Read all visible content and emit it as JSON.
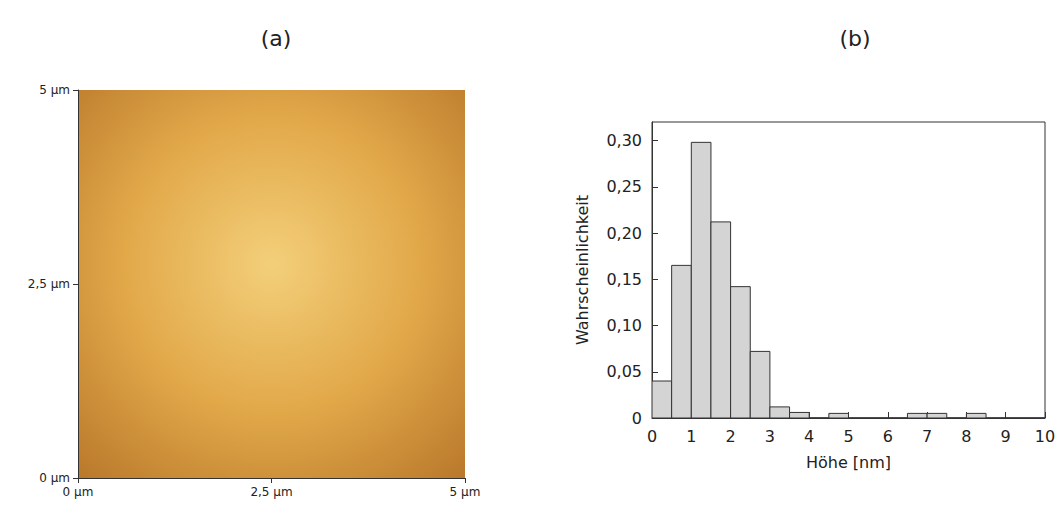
{
  "chart_data": [
    {
      "type": "image",
      "title": "(a)",
      "xlim": [
        0,
        5
      ],
      "xticks": [
        {
          "value": 0,
          "label": "0 µm"
        },
        {
          "value": 2.5,
          "label": "2,5 µm"
        },
        {
          "value": 5,
          "label": "5 µm"
        }
      ],
      "ylim": [
        0,
        5
      ],
      "yticks": [
        {
          "value": 0,
          "label": "0 µm"
        },
        {
          "value": 2.5,
          "label": "2,5 µm"
        },
        {
          "value": 5,
          "label": "5 µm"
        }
      ],
      "grid": false
    },
    {
      "type": "histogram",
      "title": "(b)",
      "x_label": "Höhe [nm]",
      "y_label": "Wahrscheinlichkeit",
      "bins": [
        0,
        0.5,
        1,
        1.5,
        2,
        2.5,
        3,
        3.5,
        4,
        4.5,
        5,
        5.5,
        6,
        6.5,
        7,
        7.5,
        8,
        8.5,
        9,
        9.5,
        10
      ],
      "counts": [
        0.04,
        0.165,
        0.298,
        0.212,
        0.142,
        0.072,
        0.012,
        0.006,
        0,
        0.005,
        0,
        0,
        0,
        0.005,
        0.005,
        0,
        0.005,
        0,
        0,
        0
      ],
      "color": "#d4d4d4",
      "xlim": [
        0,
        10
      ],
      "xticks": [
        0,
        1,
        2,
        3,
        4,
        5,
        6,
        7,
        8,
        9,
        10
      ],
      "ylim": [
        0,
        0.32
      ],
      "yticks": [
        0,
        {
          "value": 0.05,
          "label": "0,05"
        },
        {
          "value": 0.1,
          "label": "0,10"
        },
        {
          "value": 0.15,
          "label": "0,15"
        },
        {
          "value": 0.2,
          "label": "0,20"
        },
        {
          "value": 0.25,
          "label": "0,25"
        },
        {
          "value": 0.3,
          "label": "0,30"
        }
      ],
      "grid": false
    }
  ]
}
